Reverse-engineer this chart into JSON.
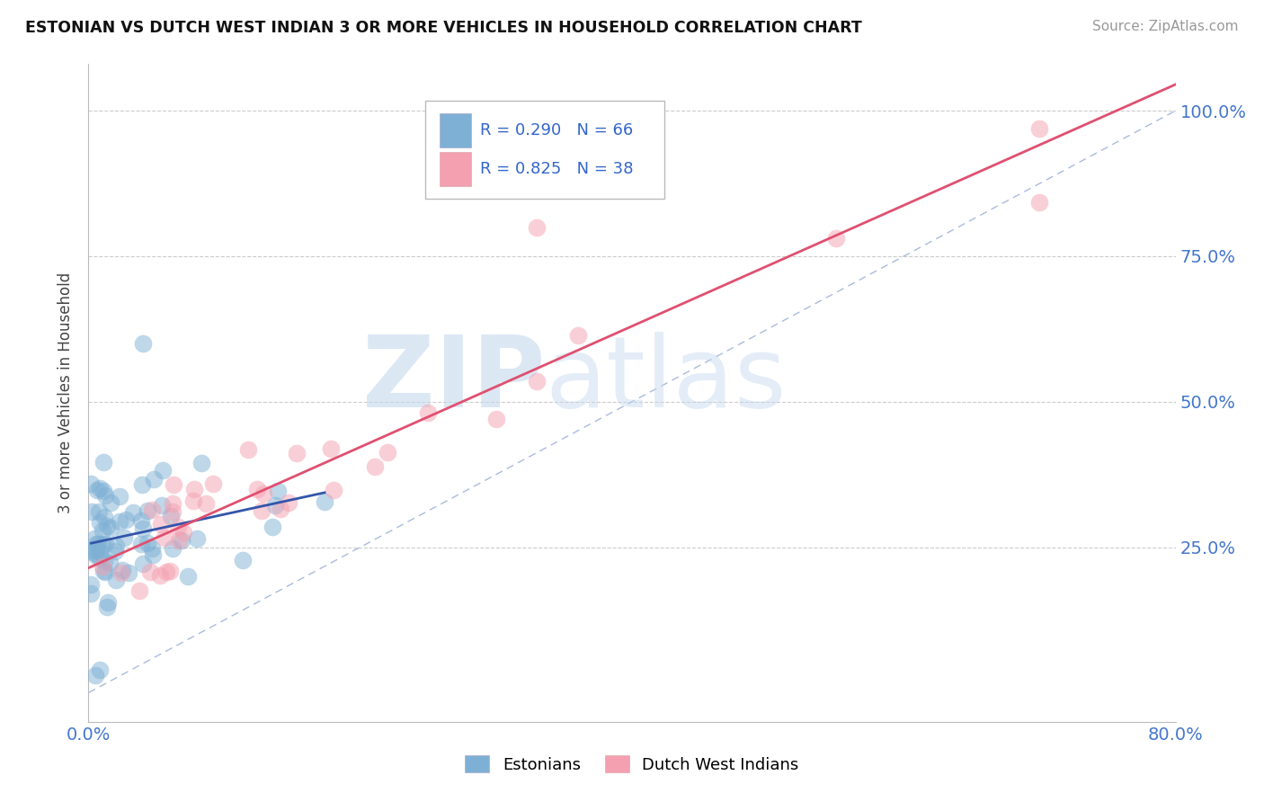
{
  "title": "ESTONIAN VS DUTCH WEST INDIAN 3 OR MORE VEHICLES IN HOUSEHOLD CORRELATION CHART",
  "source": "Source: ZipAtlas.com",
  "ylabel": "3 or more Vehicles in Household",
  "xlim": [
    0.0,
    0.8
  ],
  "ylim": [
    -0.05,
    1.08
  ],
  "blue_color": "#7EB0D5",
  "pink_color": "#F4A0B0",
  "blue_line_color": "#3355AA",
  "pink_line_color": "#E05070",
  "diag_color": "#AABBDD",
  "watermark_zip": "ZIP",
  "watermark_atlas": "atlas",
  "watermark_color": "#C5D8EE",
  "grid_color": "#CCCCCC",
  "background_color": "#FFFFFF",
  "blue_R": 0.29,
  "pink_R": 0.825,
  "blue_N": 66,
  "pink_N": 38,
  "blue_line_x": [
    0.005,
    0.22
  ],
  "blue_line_y": [
    0.23,
    0.37
  ],
  "pink_line_x": [
    0.0,
    0.8
  ],
  "pink_line_y": [
    0.22,
    1.0
  ]
}
